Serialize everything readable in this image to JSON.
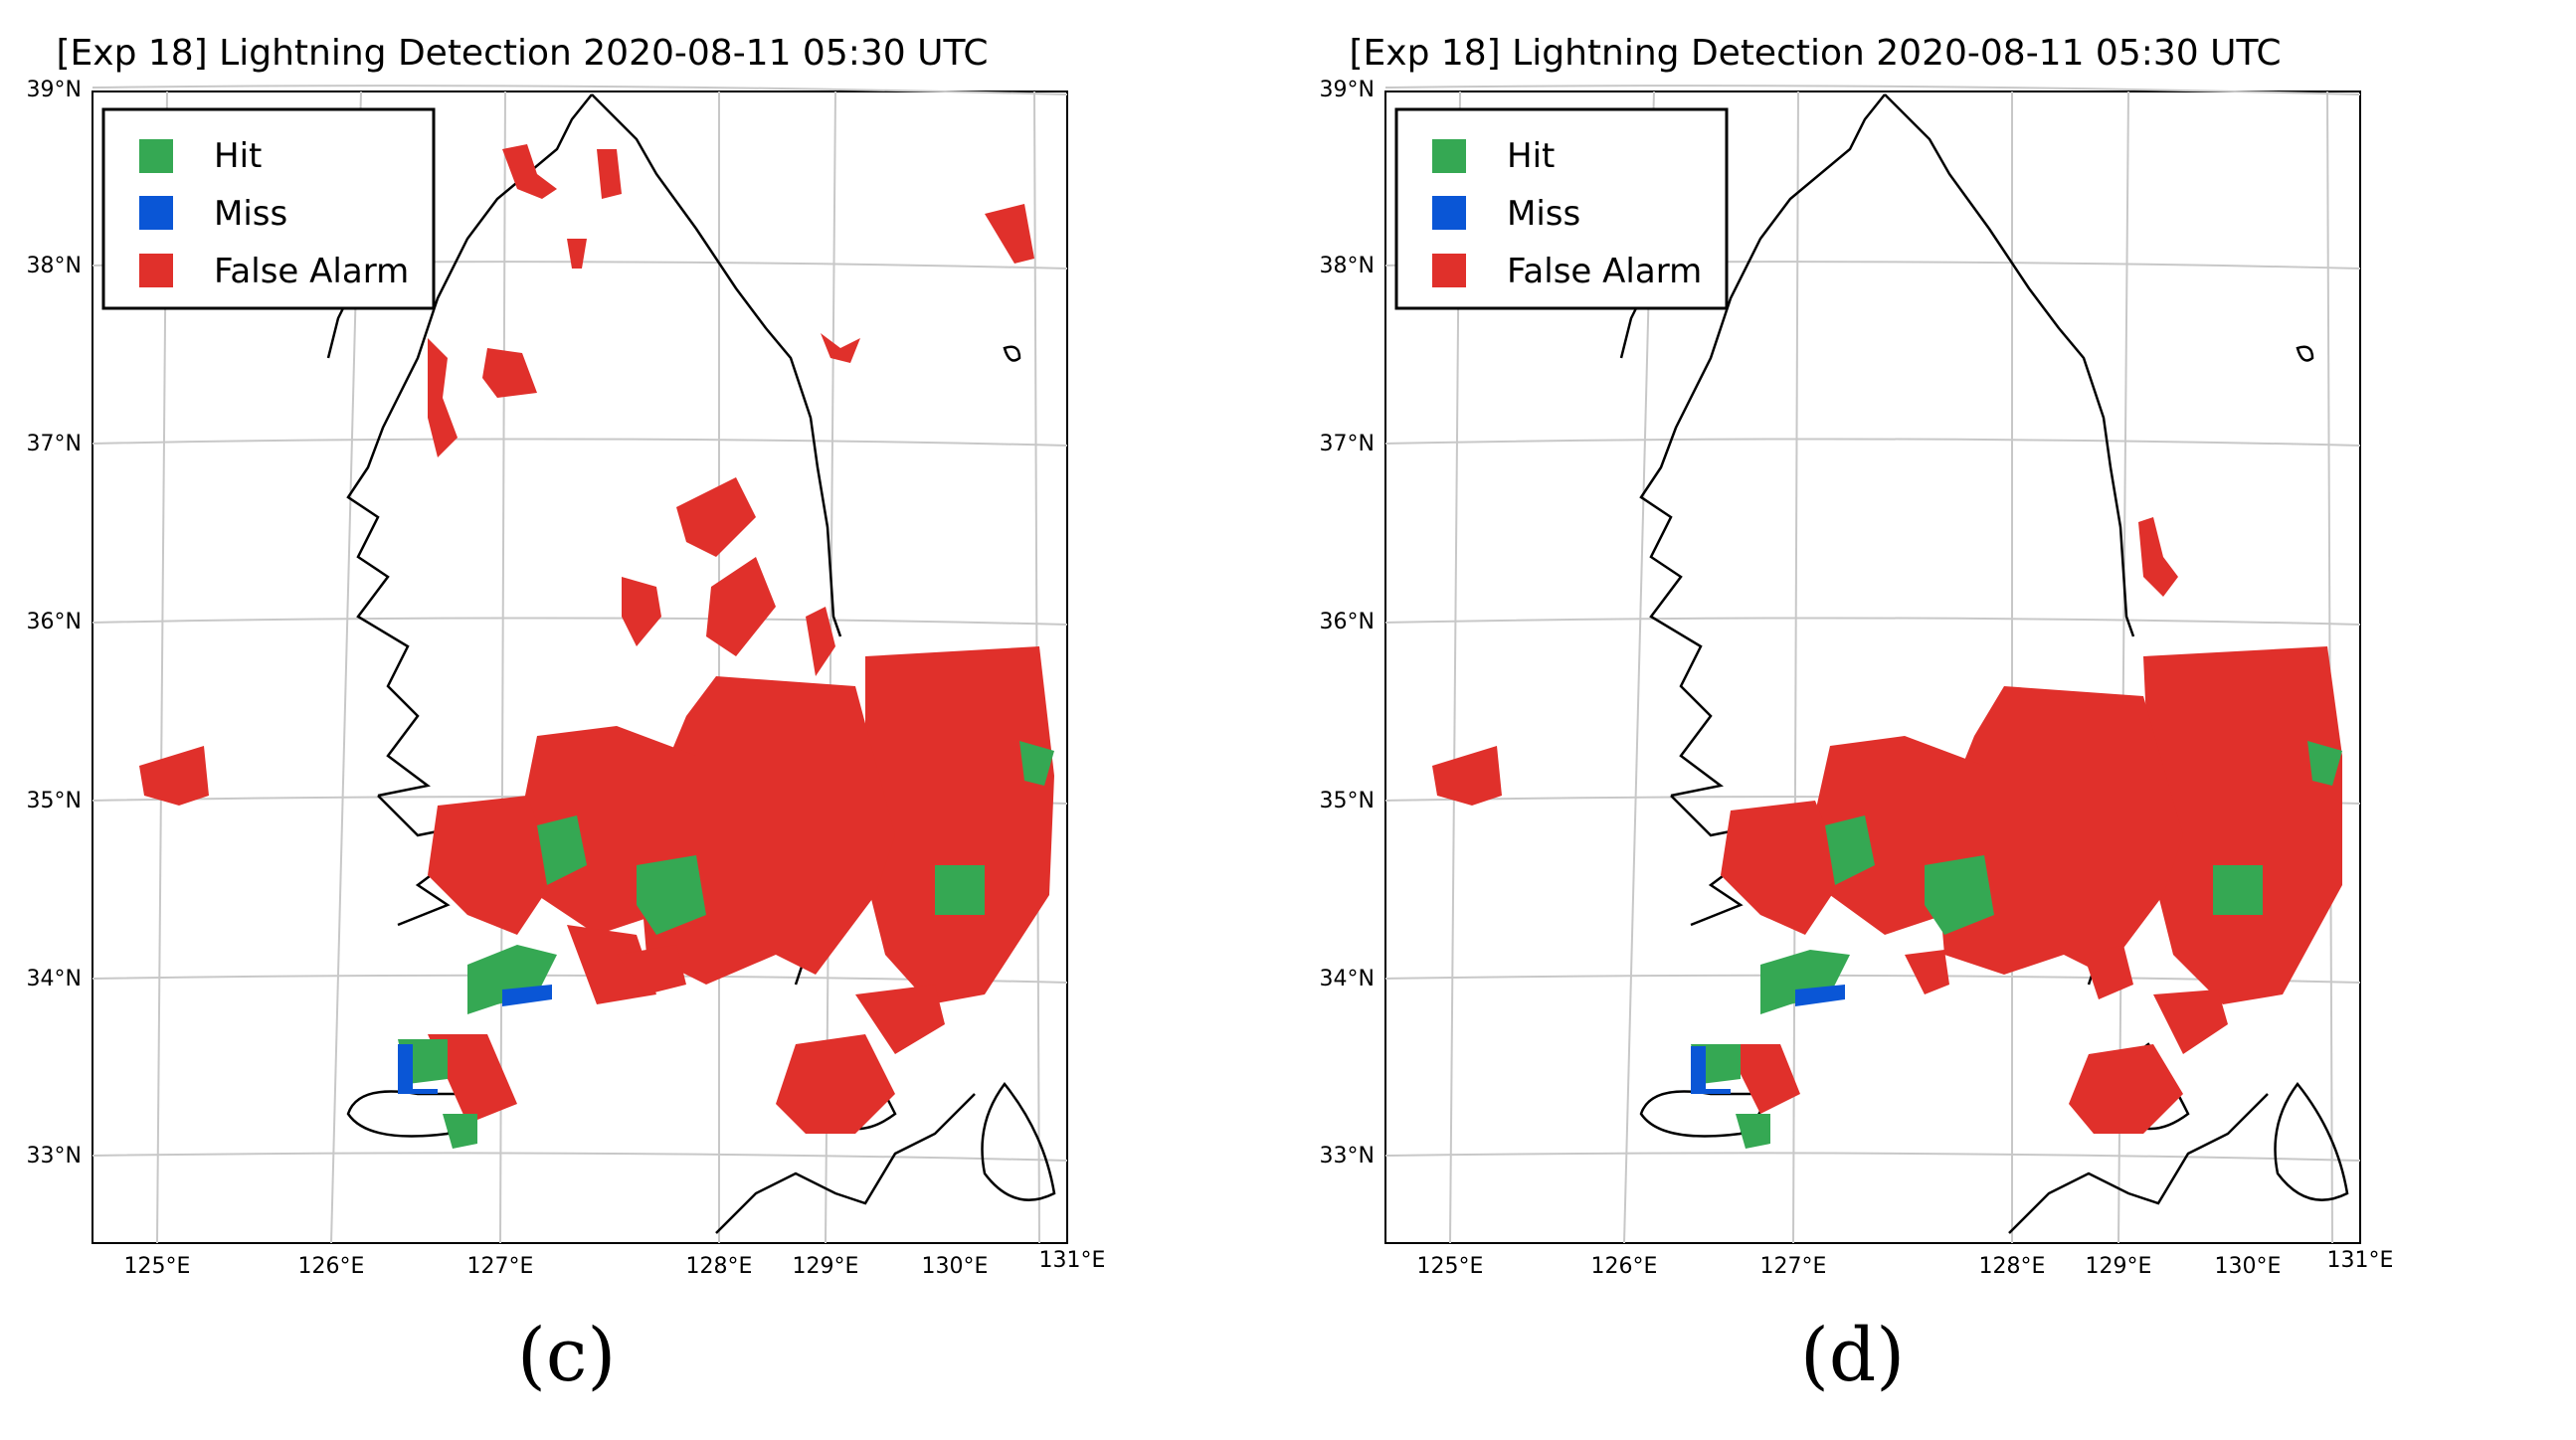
{
  "panels": [
    {
      "id": "c",
      "title": "[Exp 18] Lightning Detection 2020-08-11 05:30 UTC",
      "sublabel": "(c)",
      "legend": [
        {
          "label": "Hit",
          "color": "#35a853"
        },
        {
          "label": "Miss",
          "color": "#0a56d6"
        },
        {
          "label": "False Alarm",
          "color": "#e0302b"
        }
      ],
      "lat_labels": [
        "39°N",
        "38°N",
        "37°N",
        "36°N",
        "35°N",
        "34°N",
        "33°N"
      ],
      "lon_labels": [
        "125°E",
        "126°E",
        "127°E",
        "128°E",
        "129°E",
        "130°E",
        "131°E"
      ]
    },
    {
      "id": "d",
      "title": "[Exp 18] Lightning Detection 2020-08-11 05:30 UTC",
      "sublabel": "(d)",
      "legend": [
        {
          "label": "Hit",
          "color": "#35a853"
        },
        {
          "label": "Miss",
          "color": "#0a56d6"
        },
        {
          "label": "False Alarm",
          "color": "#e0302b"
        }
      ],
      "lat_labels": [
        "39°N",
        "38°N",
        "37°N",
        "36°N",
        "35°N",
        "34°N",
        "33°N"
      ],
      "lon_labels": [
        "125°E",
        "126°E",
        "127°E",
        "128°E",
        "129°E",
        "130°E",
        "131°E"
      ]
    }
  ]
}
